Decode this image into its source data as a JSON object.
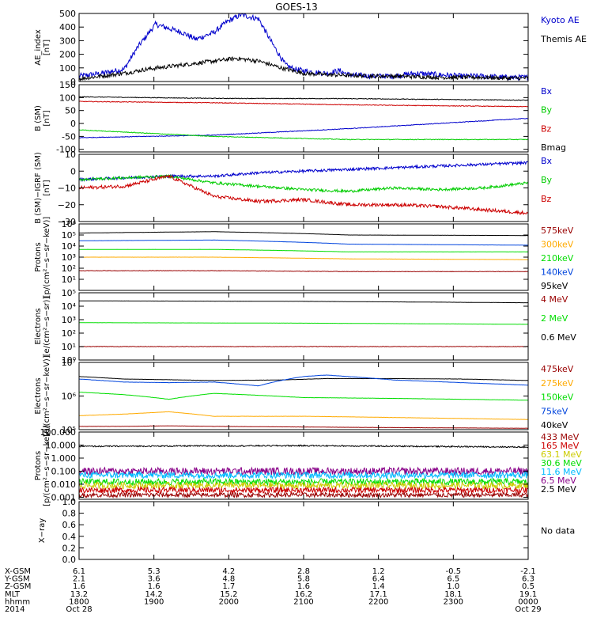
{
  "title": "GOES-13",
  "colors": {
    "black": "#000000",
    "blue": "#0000cc",
    "green": "#00cc00",
    "red": "#cc0000",
    "orange": "#ffaa00",
    "ltgreen": "#00dd00",
    "medblue": "#0044dd",
    "darkred": "#990000",
    "yellow": "#cccc00",
    "cyan": "#00bbff",
    "purple": "#880088"
  },
  "chart_data": [
    {
      "type": "line",
      "ylabel": "AE_index\n[nT]",
      "ylim": [
        0,
        500
      ],
      "scale": "linear",
      "yticks": [
        0,
        100,
        200,
        300,
        400,
        500
      ],
      "ytick_labels": [
        "0",
        "100",
        "200",
        "300",
        "400",
        "500"
      ],
      "legend": [
        {
          "label": "Kyoto AE",
          "color": "blue"
        },
        {
          "label": "Themis AE",
          "color": "black"
        }
      ],
      "series": [
        {
          "name": "Kyoto AE",
          "color": "blue",
          "noise": 0.04,
          "x": [
            0,
            0.05,
            0.1,
            0.13,
            0.17,
            0.2,
            0.23,
            0.26,
            0.3,
            0.33,
            0.36,
            0.4,
            0.43,
            0.46,
            0.48,
            0.5,
            0.52,
            0.55,
            0.58,
            0.6,
            0.65,
            0.7,
            0.75,
            0.8,
            0.85,
            0.9,
            0.95,
            1
          ],
          "y": [
            40,
            60,
            90,
            250,
            420,
            390,
            360,
            310,
            360,
            440,
            490,
            460,
            280,
            120,
            90,
            80,
            70,
            60,
            80,
            50,
            40,
            40,
            60,
            50,
            40,
            40,
            30,
            30
          ]
        },
        {
          "name": "Themis AE",
          "color": "black",
          "noise": 0.03,
          "x": [
            0,
            0.05,
            0.1,
            0.15,
            0.2,
            0.25,
            0.3,
            0.35,
            0.4,
            0.45,
            0.5,
            0.55,
            0.6,
            0.65,
            0.7,
            0.75,
            0.8,
            0.85,
            0.9,
            0.95,
            1
          ],
          "y": [
            20,
            40,
            60,
            90,
            110,
            130,
            150,
            170,
            150,
            100,
            60,
            50,
            45,
            40,
            40,
            35,
            30,
            30,
            30,
            25,
            25
          ]
        }
      ]
    },
    {
      "type": "line",
      "ylabel": "B (SM)\n[nT]",
      "ylim": [
        -110,
        150
      ],
      "scale": "linear",
      "yticks": [
        -100,
        -50,
        0,
        50,
        100,
        150
      ],
      "ytick_labels": [
        "-100",
        "-50",
        "0",
        "50",
        "100",
        "150"
      ],
      "legend": [
        {
          "label": "Bx",
          "color": "blue"
        },
        {
          "label": "By",
          "color": "green"
        },
        {
          "label": "Bz",
          "color": "red"
        },
        {
          "label": "Bmag",
          "color": "black"
        }
      ],
      "series": [
        {
          "name": "Bmag",
          "color": "black",
          "noise": 0.005,
          "x": [
            0,
            0.3,
            0.6,
            1
          ],
          "y": [
            103,
            97,
            96,
            90
          ]
        },
        {
          "name": "Bz",
          "color": "red",
          "noise": 0.005,
          "x": [
            0,
            0.3,
            0.6,
            1
          ],
          "y": [
            85,
            80,
            72,
            65
          ]
        },
        {
          "name": "Bx",
          "color": "blue",
          "noise": 0.005,
          "x": [
            0,
            0.3,
            0.6,
            1
          ],
          "y": [
            -55,
            -45,
            -20,
            20
          ]
        },
        {
          "name": "By",
          "color": "green",
          "noise": 0.005,
          "x": [
            0,
            0.3,
            0.6,
            1
          ],
          "y": [
            -25,
            -50,
            -62,
            -62
          ]
        }
      ]
    },
    {
      "type": "line",
      "ylabel": "B (SM)−IGRF (SM)\n[nT]",
      "ylim": [
        -30,
        10
      ],
      "scale": "linear",
      "yticks": [
        -30,
        -20,
        -10,
        0,
        10
      ],
      "ytick_labels": [
        "−30",
        "−20",
        "−10",
        "0",
        "10"
      ],
      "legend": [
        {
          "label": "Bx",
          "color": "blue"
        },
        {
          "label": "By",
          "color": "green"
        },
        {
          "label": "Bz",
          "color": "red"
        }
      ],
      "series": [
        {
          "name": "Bx",
          "color": "blue",
          "noise": 0.02,
          "x": [
            0,
            0.1,
            0.2,
            0.3,
            0.4,
            0.5,
            0.6,
            0.7,
            0.8,
            0.9,
            1
          ],
          "y": [
            -5,
            -4,
            -3,
            -3,
            -1,
            0,
            1,
            2,
            3,
            4,
            5
          ]
        },
        {
          "name": "By",
          "color": "green",
          "noise": 0.02,
          "x": [
            0,
            0.1,
            0.2,
            0.3,
            0.4,
            0.5,
            0.6,
            0.7,
            0.8,
            0.9,
            1
          ],
          "y": [
            -5,
            -4,
            -3,
            -7,
            -9,
            -11,
            -12,
            -10,
            -11,
            -10,
            -7
          ]
        },
        {
          "name": "Bz",
          "color": "red",
          "noise": 0.025,
          "x": [
            0,
            0.1,
            0.2,
            0.3,
            0.4,
            0.5,
            0.6,
            0.7,
            0.8,
            0.9,
            1
          ],
          "y": [
            -10,
            -9,
            -3,
            -15,
            -18,
            -17,
            -20,
            -20,
            -21,
            -23,
            -25
          ]
        }
      ]
    },
    {
      "type": "line",
      "ylabel": "Protons\n[p/(cm²−s−sr−keV)]",
      "ylim": [
        1,
        1000000
      ],
      "scale": "log",
      "yticks": [
        10,
        100,
        1000,
        10000,
        100000,
        1000000
      ],
      "ytick_labels": [
        "10¹",
        "10²",
        "10³",
        "10⁴",
        "10⁵",
        "10⁶"
      ],
      "legend": [
        {
          "label": "575keV",
          "color": "darkred"
        },
        {
          "label": "300keV",
          "color": "orange"
        },
        {
          "label": "210keV",
          "color": "ltgreen"
        },
        {
          "label": "140keV",
          "color": "medblue"
        },
        {
          "label": "95keV",
          "color": "black"
        }
      ],
      "series": [
        {
          "name": "95keV",
          "color": "black",
          "noise": 0.005,
          "x": [
            0,
            0.3,
            0.6,
            1
          ],
          "y": [
            150000,
            200000,
            100000,
            90000
          ]
        },
        {
          "name": "140keV",
          "color": "medblue",
          "noise": 0.005,
          "x": [
            0,
            0.3,
            0.6,
            1
          ],
          "y": [
            30000,
            35000,
            15000,
            12000
          ]
        },
        {
          "name": "210keV",
          "color": "ltgreen",
          "noise": 0.005,
          "x": [
            0,
            0.3,
            0.6,
            1
          ],
          "y": [
            5000,
            5000,
            3000,
            3000
          ]
        },
        {
          "name": "300keV",
          "color": "orange",
          "noise": 0.005,
          "x": [
            0,
            0.3,
            0.6,
            1
          ],
          "y": [
            1000,
            1000,
            700,
            600
          ]
        },
        {
          "name": "575keV",
          "color": "darkred",
          "noise": 0.02,
          "x": [
            0,
            0.3,
            0.6,
            1
          ],
          "y": [
            60,
            60,
            50,
            50
          ]
        }
      ]
    },
    {
      "type": "line",
      "ylabel": "Electrons\n[e/(cm²−s−sr)]",
      "ylim": [
        1,
        100000
      ],
      "scale": "log",
      "yticks": [
        1,
        10,
        100,
        1000,
        10000,
        100000
      ],
      "ytick_labels": [
        "10⁰",
        "10¹",
        "10²",
        "10³",
        "10⁴",
        "10⁵"
      ],
      "legend": [
        {
          "label": "4 MeV",
          "color": "darkred"
        },
        {
          "label": "2 MeV",
          "color": "ltgreen"
        },
        {
          "label": "0.6 MeV",
          "color": "black"
        }
      ],
      "series": [
        {
          "name": "0.6 MeV",
          "color": "black",
          "noise": 0.004,
          "x": [
            0,
            0.5,
            1
          ],
          "y": [
            25000,
            23000,
            18000
          ]
        },
        {
          "name": "2 MeV",
          "color": "ltgreen",
          "noise": 0.004,
          "x": [
            0,
            0.5,
            1
          ],
          "y": [
            600,
            550,
            450
          ]
        },
        {
          "name": "4 MeV",
          "color": "darkred",
          "noise": 0.02,
          "x": [
            0,
            0.5,
            1
          ],
          "y": [
            10,
            10,
            10
          ]
        }
      ]
    },
    {
      "type": "line",
      "ylabel": "Electrons\n[e/(cm²−s−sr−keV)]",
      "ylim": [
        100000,
        10000000
      ],
      "scale": "log",
      "yticks": [
        100000,
        1000000,
        10000000
      ],
      "ytick_labels": [
        "10⁵",
        "10⁶",
        "10⁷"
      ],
      "legend": [
        {
          "label": "475keV",
          "color": "darkred"
        },
        {
          "label": "275keV",
          "color": "orange"
        },
        {
          "label": "150keV",
          "color": "ltgreen"
        },
        {
          "label": "75keV",
          "color": "medblue"
        },
        {
          "label": "40keV",
          "color": "black"
        }
      ],
      "series": [
        {
          "name": "40keV",
          "color": "black",
          "noise": 0.003,
          "x": [
            0,
            0.1,
            0.3,
            0.45,
            0.55,
            0.7,
            0.85,
            1
          ],
          "y": [
            3800000,
            3200000,
            2900000,
            3000000,
            3300000,
            3300000,
            3200000,
            2900000
          ]
        },
        {
          "name": "75keV",
          "color": "medblue",
          "noise": 0.003,
          "x": [
            0,
            0.1,
            0.2,
            0.3,
            0.4,
            0.5,
            0.55,
            0.7,
            0.85,
            1
          ],
          "y": [
            3200000,
            2600000,
            2500000,
            2600000,
            2000000,
            3800000,
            4200000,
            3000000,
            2500000,
            2100000
          ]
        },
        {
          "name": "150keV",
          "color": "ltgreen",
          "noise": 0.003,
          "x": [
            0,
            0.1,
            0.2,
            0.3,
            0.5,
            0.7,
            1
          ],
          "y": [
            1300000,
            1100000,
            800000,
            1200000,
            900000,
            850000,
            750000
          ]
        },
        {
          "name": "275keV",
          "color": "orange",
          "noise": 0.003,
          "x": [
            0,
            0.1,
            0.2,
            0.3,
            0.5,
            0.7,
            1
          ],
          "y": [
            260000,
            290000,
            340000,
            250000,
            250000,
            230000,
            200000
          ]
        },
        {
          "name": "475keV",
          "color": "darkred",
          "noise": 0.003,
          "x": [
            0,
            0.1,
            0.2,
            0.3,
            0.5,
            0.7,
            1
          ],
          "y": [
            125000,
            125000,
            130000,
            125000,
            120000,
            115000,
            110000
          ]
        }
      ]
    },
    {
      "type": "line",
      "ylabel": "Protons\n[p/(cm²−s−sr−keV)]",
      "ylim": [
        0.0007,
        100
      ],
      "scale": "log",
      "yticks": [
        0.001,
        0.01,
        0.1,
        1,
        10,
        100
      ],
      "ytick_labels": [
        "0.001",
        "0.010",
        "0.100",
        "1.000",
        "10.000",
        "100.000"
      ],
      "legend": [
        {
          "label": "433 MeV",
          "color": "darkred"
        },
        {
          "label": "165 MeV",
          "color": "red"
        },
        {
          "label": "63.1 MeV",
          "color": "yellow"
        },
        {
          "label": "30.6 MeV",
          "color": "ltgreen"
        },
        {
          "label": "11.6 MeV",
          "color": "cyan"
        },
        {
          "label": "6.5 MeV",
          "color": "purple"
        },
        {
          "label": "2.5 MeV",
          "color": "black"
        }
      ],
      "series": [
        {
          "name": "2.5 MeV",
          "color": "black",
          "noise": 0.05,
          "x": [
            0,
            0.5,
            1
          ],
          "y": [
            8,
            9,
            7
          ]
        },
        {
          "name": "6.5 MeV",
          "color": "purple",
          "noise": 0.28,
          "x": [
            0,
            1
          ],
          "y": [
            0.1,
            0.1
          ]
        },
        {
          "name": "11.6 MeV",
          "color": "cyan",
          "noise": 0.25,
          "x": [
            0,
            1
          ],
          "y": [
            0.05,
            0.05
          ]
        },
        {
          "name": "30.6 MeV",
          "color": "ltgreen",
          "noise": 0.25,
          "x": [
            0,
            1
          ],
          "y": [
            0.015,
            0.015
          ]
        },
        {
          "name": "63.1 MeV",
          "color": "yellow",
          "noise": 0.25,
          "x": [
            0,
            1
          ],
          "y": [
            0.008,
            0.008
          ]
        },
        {
          "name": "165 MeV",
          "color": "red",
          "noise": 0.22,
          "x": [
            0,
            1
          ],
          "y": [
            0.0035,
            0.0035
          ]
        },
        {
          "name": "433 MeV",
          "color": "darkred",
          "noise": 0.18,
          "x": [
            0,
            1
          ],
          "y": [
            0.0015,
            0.0015
          ]
        }
      ]
    },
    {
      "type": "line",
      "ylabel": "X−ray",
      "ylim": [
        0,
        1
      ],
      "scale": "linear",
      "yticks": [
        0,
        0.2,
        0.4,
        0.6,
        0.8,
        1.0
      ],
      "ytick_labels": [
        "0.0",
        "0.2",
        "0.4",
        "0.6",
        "0.8",
        "1.0"
      ],
      "legend": [
        {
          "label": "No data",
          "color": "black"
        }
      ],
      "series": []
    }
  ],
  "axis_table": {
    "rows": [
      {
        "label": "X-GSM",
        "values": [
          "6.1",
          "5.3",
          "4.2",
          "2.8",
          "1.2",
          "-0.5",
          "-2.1"
        ]
      },
      {
        "label": "Y-GSM",
        "values": [
          "2.1",
          "3.6",
          "4.8",
          "5.8",
          "6.4",
          "6.5",
          "6.3"
        ]
      },
      {
        "label": "Z-GSM",
        "values": [
          "1.6",
          "1.6",
          "1.7",
          "1.6",
          "1.4",
          "1.0",
          "0.5"
        ]
      },
      {
        "label": "MLT",
        "values": [
          "13.2",
          "14.2",
          "15.2",
          "16.2",
          "17.1",
          "18.1",
          "19.1"
        ]
      },
      {
        "label": "hhmm",
        "values": [
          "1800",
          "1900",
          "2000",
          "2100",
          "2200",
          "2300",
          "0000"
        ]
      }
    ],
    "year": "2014",
    "start_date": "Oct 28",
    "end_date": "Oct 29"
  }
}
